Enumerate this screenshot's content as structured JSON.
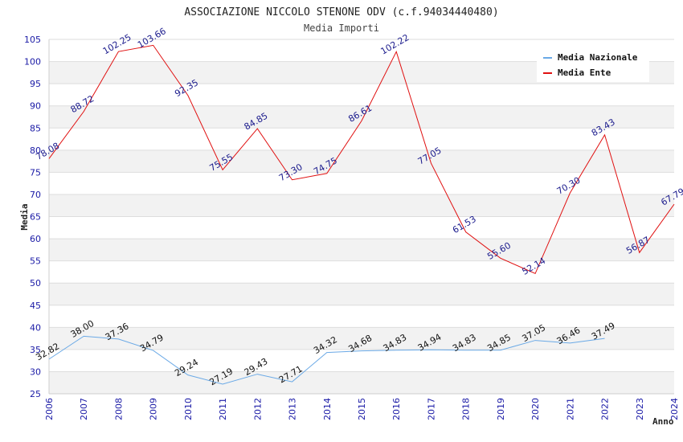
{
  "chart_data": {
    "type": "line",
    "title": "ASSOCIAZIONE NICCOLO STENONE ODV (c.f.94034440480)",
    "subtitle": "Media Importi",
    "xlabel": "Anno",
    "ylabel": "Media",
    "ylim": [
      25,
      105
    ],
    "yticks": [
      25,
      30,
      35,
      40,
      45,
      50,
      55,
      60,
      65,
      70,
      75,
      80,
      85,
      90,
      95,
      100,
      105
    ],
    "x": [
      "2006",
      "2007",
      "2008",
      "2009",
      "2010",
      "2011",
      "2012",
      "2013",
      "2014",
      "2015",
      "2016",
      "2017",
      "2018",
      "2019",
      "2020",
      "2021",
      "2022",
      "2023",
      "2024"
    ],
    "grid": true,
    "legend_position": "top-right",
    "series": [
      {
        "name": "Media Nazionale",
        "color": "#6aa9e6",
        "values": [
          32.82,
          38.0,
          37.36,
          34.79,
          29.24,
          27.19,
          29.43,
          27.71,
          34.32,
          34.68,
          34.83,
          34.94,
          34.83,
          34.85,
          37.05,
          36.46,
          37.49,
          null,
          null
        ],
        "labels": [
          "32.82",
          "38.00",
          "37.36",
          "34.79",
          "29.24",
          "27.19",
          "29.43",
          "27.71",
          "34.32",
          "34.68",
          "34.83",
          "34.94",
          "34.83",
          "34.85",
          "37.05",
          "36.46",
          "37.49",
          null,
          null
        ]
      },
      {
        "name": "Media Ente",
        "color": "#e01010",
        "values": [
          78.08,
          88.72,
          102.25,
          103.66,
          92.35,
          75.55,
          84.85,
          73.3,
          74.75,
          86.61,
          102.22,
          77.05,
          61.53,
          55.6,
          52.14,
          70.3,
          83.43,
          56.87,
          67.79
        ],
        "labels": [
          "78.08",
          "88.72",
          "102.25",
          "103.66",
          "92.35",
          "75.55",
          "84.85",
          "73.30",
          "74.75",
          "86.61",
          "102.22",
          "77.05",
          "61.53",
          "55.60",
          "52.14",
          "70.30",
          "83.43",
          "56.87",
          "67.79"
        ]
      }
    ]
  }
}
